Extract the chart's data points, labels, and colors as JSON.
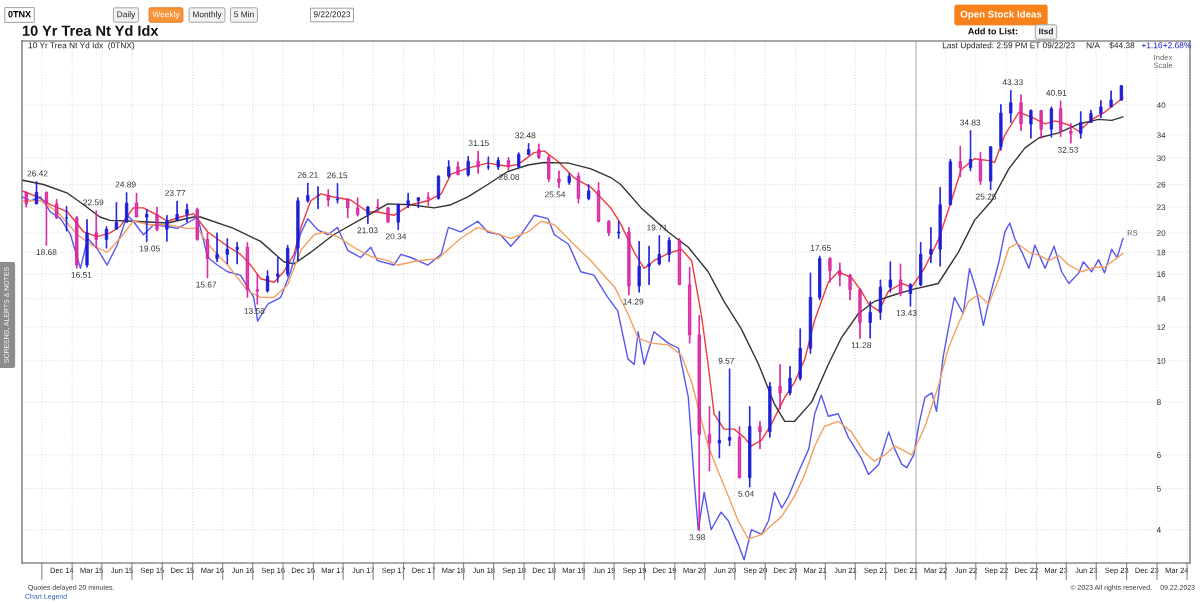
{
  "chart_data": {
    "type": "candlestick",
    "title": "10 Yr Trea Nt Yd Idx",
    "subtitle": "10 Yr Trea Nt Yd Idx  (0TNX)",
    "x": [
      "2014-08-15",
      "2014-09-15",
      "2014-10-15",
      "2014-11-15",
      "2014-12-15",
      "2015-01-15",
      "2015-02-15",
      "2015-03-15",
      "2015-04-15",
      "2015-05-15",
      "2015-06-15",
      "2015-07-15",
      "2015-08-15",
      "2015-09-15",
      "2015-10-15",
      "2015-11-15",
      "2015-12-15",
      "2016-01-15",
      "2016-02-15",
      "2016-03-15",
      "2016-04-15",
      "2016-05-15",
      "2016-06-15",
      "2016-07-15",
      "2016-08-15",
      "2016-09-15",
      "2016-10-15",
      "2016-11-15",
      "2016-12-15",
      "2017-01-15",
      "2017-02-15",
      "2017-03-15",
      "2017-04-15",
      "2017-05-15",
      "2017-06-15",
      "2017-07-15",
      "2017-08-15",
      "2017-09-15",
      "2017-10-15",
      "2017-11-15",
      "2017-12-15",
      "2018-01-15",
      "2018-02-15",
      "2018-03-15",
      "2018-04-15",
      "2018-05-15",
      "2018-06-15",
      "2018-07-15",
      "2018-08-15",
      "2018-09-15",
      "2018-10-15",
      "2018-11-15",
      "2018-12-15",
      "2019-01-15",
      "2019-02-15",
      "2019-03-15",
      "2019-04-15",
      "2019-05-15",
      "2019-06-15",
      "2019-07-15",
      "2019-08-15",
      "2019-09-15",
      "2019-10-15",
      "2019-11-15",
      "2019-12-15",
      "2020-01-15",
      "2020-02-15",
      "2020-03-15",
      "2020-04-15",
      "2020-05-15",
      "2020-06-15",
      "2020-07-15",
      "2020-08-15",
      "2020-09-15",
      "2020-10-15",
      "2020-11-15",
      "2020-12-15",
      "2021-01-15",
      "2021-02-15",
      "2021-03-15",
      "2021-04-15",
      "2021-05-15",
      "2021-06-15",
      "2021-07-15",
      "2021-08-15",
      "2021-09-15",
      "2021-10-15",
      "2021-11-15",
      "2021-12-15",
      "2022-01-15",
      "2022-02-15",
      "2022-03-15",
      "2022-04-15",
      "2022-05-15",
      "2022-06-15",
      "2022-07-15",
      "2022-08-15",
      "2022-09-15",
      "2022-10-15",
      "2022-11-15",
      "2022-12-15",
      "2023-01-15",
      "2023-02-15",
      "2023-03-15",
      "2023-04-15",
      "2023-05-15",
      "2023-06-15",
      "2023-07-15",
      "2023-08-15",
      "2023-09-15"
    ],
    "ohlc": [
      [
        24.9,
        25.0,
        23.0,
        23.4
      ],
      [
        23.4,
        26.42,
        23.4,
        24.9
      ],
      [
        24.9,
        25.0,
        18.68,
        23.4
      ],
      [
        23.4,
        24.0,
        21.6,
        21.7
      ],
      [
        21.7,
        23.1,
        20.2,
        21.7
      ],
      [
        21.7,
        21.9,
        16.51,
        16.8
      ],
      [
        16.8,
        21.5,
        16.6,
        20.0
      ],
      [
        20.0,
        22.59,
        18.4,
        19.3
      ],
      [
        19.3,
        20.7,
        18.4,
        20.4
      ],
      [
        20.4,
        23.6,
        20.4,
        21.2
      ],
      [
        21.2,
        24.89,
        21.2,
        23.5
      ],
      [
        23.5,
        24.8,
        21.8,
        21.8
      ],
      [
        21.8,
        22.7,
        19.05,
        22.1
      ],
      [
        22.1,
        23.0,
        20.2,
        20.4
      ],
      [
        20.4,
        22.0,
        19.1,
        21.4
      ],
      [
        21.4,
        23.77,
        21.4,
        22.1
      ],
      [
        22.1,
        23.4,
        21.2,
        22.7
      ],
      [
        22.7,
        22.9,
        19.2,
        19.3
      ],
      [
        19.3,
        20.0,
        15.67,
        17.4
      ],
      [
        17.4,
        20.0,
        17.1,
        17.8
      ],
      [
        17.8,
        19.4,
        16.9,
        18.3
      ],
      [
        18.3,
        19.0,
        16.9,
        18.5
      ],
      [
        18.5,
        19.0,
        14.1,
        14.7
      ],
      [
        14.7,
        16.0,
        13.58,
        14.6
      ],
      [
        14.6,
        16.3,
        14.5,
        15.8
      ],
      [
        15.8,
        17.5,
        15.3,
        16.0
      ],
      [
        16.0,
        18.7,
        15.8,
        18.4
      ],
      [
        18.4,
        24.2,
        17.2,
        23.8
      ],
      [
        23.8,
        26.21,
        23.6,
        24.5
      ],
      [
        24.5,
        25.7,
        22.8,
        24.5
      ],
      [
        24.5,
        25.3,
        23.1,
        23.9
      ],
      [
        23.9,
        26.15,
        23.5,
        24.0
      ],
      [
        24.0,
        24.1,
        21.7,
        22.9
      ],
      [
        22.9,
        24.2,
        21.9,
        22.1
      ],
      [
        22.1,
        23.1,
        21.03,
        23.0
      ],
      [
        23.0,
        24.0,
        22.4,
        22.9
      ],
      [
        22.9,
        23.0,
        21.2,
        21.2
      ],
      [
        21.2,
        23.4,
        20.34,
        23.3
      ],
      [
        23.3,
        24.8,
        22.9,
        23.8
      ],
      [
        23.8,
        24.2,
        22.9,
        24.2
      ],
      [
        24.2,
        24.9,
        23.2,
        24.1
      ],
      [
        24.1,
        27.3,
        24.0,
        27.2
      ],
      [
        27.2,
        29.6,
        27.0,
        28.6
      ],
      [
        28.6,
        29.4,
        27.4,
        27.4
      ],
      [
        27.4,
        30.3,
        27.2,
        29.5
      ],
      [
        29.5,
        31.15,
        27.6,
        28.6
      ],
      [
        28.6,
        30.2,
        28.2,
        28.6
      ],
      [
        28.6,
        30.1,
        28.2,
        29.6
      ],
      [
        29.6,
        30.1,
        28.08,
        28.6
      ],
      [
        28.6,
        30.9,
        28.5,
        30.6
      ],
      [
        30.6,
        32.48,
        30.5,
        31.4
      ],
      [
        31.4,
        32.4,
        29.9,
        30.1
      ],
      [
        30.1,
        30.4,
        26.4,
        26.8
      ],
      [
        26.8,
        28.0,
        25.54,
        26.3
      ],
      [
        26.3,
        27.6,
        26.0,
        27.2
      ],
      [
        27.2,
        27.7,
        23.5,
        24.1
      ],
      [
        24.1,
        26.0,
        23.9,
        25.1
      ],
      [
        25.1,
        26.3,
        21.2,
        21.3
      ],
      [
        21.3,
        21.4,
        19.7,
        20.0
      ],
      [
        20.0,
        21.3,
        19.4,
        20.1
      ],
      [
        20.1,
        20.6,
        14.29,
        15.0
      ],
      [
        15.0,
        19.1,
        14.5,
        16.7
      ],
      [
        16.7,
        18.6,
        15.1,
        16.9
      ],
      [
        16.9,
        19.71,
        16.8,
        17.8
      ],
      [
        17.8,
        19.5,
        17.1,
        19.2
      ],
      [
        19.2,
        19.4,
        15.1,
        15.1
      ],
      [
        15.1,
        16.6,
        11.0,
        11.5
      ],
      [
        11.5,
        12.8,
        3.98,
        6.7
      ],
      [
        6.7,
        7.8,
        5.5,
        6.4
      ],
      [
        6.4,
        7.6,
        5.9,
        6.5
      ],
      [
        6.5,
        9.57,
        6.3,
        6.6
      ],
      [
        6.6,
        7.0,
        5.3,
        5.3
      ],
      [
        5.3,
        7.8,
        5.04,
        7.0
      ],
      [
        7.0,
        7.2,
        6.2,
        6.8
      ],
      [
        6.8,
        8.9,
        6.6,
        8.7
      ],
      [
        8.7,
        9.8,
        7.7,
        8.4
      ],
      [
        8.4,
        9.7,
        8.3,
        9.1
      ],
      [
        9.1,
        11.9,
        9.0,
        10.7
      ],
      [
        10.7,
        16.1,
        10.4,
        14.1
      ],
      [
        14.1,
        17.65,
        13.9,
        17.4
      ],
      [
        17.4,
        17.5,
        15.3,
        16.3
      ],
      [
        16.3,
        17.0,
        15.0,
        15.9
      ],
      [
        15.9,
        16.0,
        13.9,
        14.7
      ],
      [
        14.7,
        14.8,
        11.28,
        12.3
      ],
      [
        12.3,
        13.8,
        11.3,
        13.0
      ],
      [
        13.0,
        15.5,
        12.5,
        14.9
      ],
      [
        14.9,
        17.1,
        14.5,
        15.5
      ],
      [
        15.5,
        16.9,
        14.2,
        14.4
      ],
      [
        14.4,
        15.2,
        13.43,
        15.1
      ],
      [
        15.1,
        19.0,
        15.0,
        17.8
      ],
      [
        17.8,
        20.6,
        17.0,
        18.3
      ],
      [
        18.3,
        25.6,
        16.7,
        23.3
      ],
      [
        23.3,
        29.8,
        23.3,
        29.4
      ],
      [
        29.4,
        32.0,
        27.1,
        28.5
      ],
      [
        28.5,
        34.83,
        28.0,
        29.8
      ],
      [
        29.8,
        31.0,
        26.0,
        26.5
      ],
      [
        26.5,
        31.9,
        25.25,
        31.9
      ],
      [
        31.9,
        40.1,
        31.3,
        38.3
      ],
      [
        38.3,
        43.33,
        36.4,
        40.5
      ],
      [
        40.5,
        42.3,
        34.8,
        36.1
      ],
      [
        36.1,
        39.0,
        33.4,
        38.8
      ],
      [
        38.8,
        38.9,
        33.4,
        35.1
      ],
      [
        35.1,
        39.6,
        33.6,
        39.2
      ],
      [
        39.2,
        40.91,
        33.7,
        34.7
      ],
      [
        34.7,
        36.2,
        32.53,
        34.3
      ],
      [
        34.3,
        38.6,
        33.4,
        36.4
      ],
      [
        36.4,
        38.9,
        36.4,
        38.2
      ],
      [
        38.2,
        41.0,
        37.3,
        39.6
      ],
      [
        39.6,
        43.2,
        39.6,
        41.1
      ],
      [
        41.1,
        44.5,
        41.0,
        44.38
      ]
    ],
    "colors": [
      "#d9249f",
      "#1f1fd6",
      "#d9249f",
      "#d9249f",
      "#1f1fd6",
      "#d9249f",
      "#1f1fd6",
      "#d9249f",
      "#1f1fd6",
      "#1f1fd6",
      "#1f1fd6",
      "#d9249f",
      "#1f1fd6",
      "#d9249f",
      "#1f1fd6",
      "#1f1fd6",
      "#1f1fd6",
      "#d9249f",
      "#d9249f",
      "#1f1fd6",
      "#1f1fd6",
      "#1f1fd6",
      "#d9249f",
      "#d9249f",
      "#1f1fd6",
      "#1f1fd6",
      "#1f1fd6",
      "#1f1fd6",
      "#1f1fd6",
      "#1f1fd6",
      "#d9249f",
      "#1f1fd6",
      "#d9249f",
      "#d9249f",
      "#1f1fd6",
      "#d9249f",
      "#d9249f",
      "#1f1fd6",
      "#1f1fd6",
      "#1f1fd6",
      "#d9249f",
      "#1f1fd6",
      "#1f1fd6",
      "#d9249f",
      "#1f1fd6",
      "#d9249f",
      "#1f1fd6",
      "#1f1fd6",
      "#d9249f",
      "#1f1fd6",
      "#1f1fd6",
      "#d9249f",
      "#d9249f",
      "#d9249f",
      "#1f1fd6",
      "#d9249f",
      "#1f1fd6",
      "#d9249f",
      "#d9249f",
      "#1f1fd6",
      "#d9249f",
      "#1f1fd6",
      "#1f1fd6",
      "#1f1fd6",
      "#1f1fd6",
      "#d9249f",
      "#d9249f",
      "#d9249f",
      "#d9249f",
      "#1f1fd6",
      "#1f1fd6",
      "#d9249f",
      "#1f1fd6",
      "#d9249f",
      "#1f1fd6",
      "#d9249f",
      "#1f1fd6",
      "#1f1fd6",
      "#1f1fd6",
      "#1f1fd6",
      "#d9249f",
      "#d9249f",
      "#d9249f",
      "#d9249f",
      "#1f1fd6",
      "#1f1fd6",
      "#1f1fd6",
      "#d9249f",
      "#1f1fd6",
      "#1f1fd6",
      "#1f1fd6",
      "#1f1fd6",
      "#1f1fd6",
      "#d9249f",
      "#1f1fd6",
      "#d9249f",
      "#1f1fd6",
      "#1f1fd6",
      "#1f1fd6",
      "#d9249f",
      "#1f1fd6",
      "#d9249f",
      "#1f1fd6",
      "#d9249f",
      "#d9249f",
      "#1f1fd6",
      "#1f1fd6",
      "#1f1fd6",
      "#1f1fd6",
      "#1f1fd6"
    ],
    "series": [
      {
        "type": "line",
        "color": "#f03a3a",
        "x": [
          "2014-08-03",
          "2014-09-18",
          "2014-10-27",
          "2014-12-18",
          "2015-02-05",
          "2015-03-17",
          "2015-04-26",
          "2015-05-26",
          "2015-07-05",
          "2015-08-05",
          "2015-09-17",
          "2015-10-17",
          "2015-11-25",
          "2016-01-04",
          "2016-02-16",
          "2016-04-16",
          "2016-05-25",
          "2016-06-25",
          "2016-07-25",
          "2016-09-04",
          "2016-10-03",
          "2016-11-03",
          "2016-11-24",
          "2016-12-24",
          "2017-01-24",
          "2017-03-03",
          "2017-04-24",
          "2017-06-15",
          "2017-07-14",
          "2017-09-02",
          "2017-10-23",
          "2017-12-14",
          "2018-01-23",
          "2018-02-22",
          "2018-04-14",
          "2018-06-13",
          "2018-08-13",
          "2018-09-13",
          "2018-11-01",
          "2018-12-01",
          "2019-01-13",
          "2019-03-01",
          "2019-04-22",
          "2019-06-21",
          "2019-07-21",
          "2019-08-31",
          "2019-09-30",
          "2019-10-30",
          "2019-12-12",
          "2020-01-21",
          "2020-02-21",
          "2020-03-21",
          "2020-04-11",
          "2020-04-29",
          "2020-05-29",
          "2020-06-29",
          "2020-07-29",
          "2020-08-20",
          "2020-09-20",
          "2020-10-20",
          "2020-11-29",
          "2020-12-29",
          "2021-01-29",
          "2021-02-27",
          "2021-04-10",
          "2021-05-10",
          "2021-06-19",
          "2021-07-19",
          "2021-08-10",
          "2021-09-10",
          "2021-10-10",
          "2021-11-19",
          "2021-12-19",
          "2022-01-28",
          "2022-03-09",
          "2022-04-18",
          "2022-05-18",
          "2022-06-27",
          "2022-08-09",
          "2022-08-27",
          "2022-09-27",
          "2022-11-09",
          "2022-12-18",
          "2023-01-27",
          "2023-02-27",
          "2023-04-09",
          "2023-05-09",
          "2023-06-18",
          "2023-07-27",
          "2023-09-20"
        ],
        "values": [
          25.1,
          24.3,
          23.3,
          22.4,
          20.1,
          19.6,
          20.0,
          20.7,
          22.9,
          22.9,
          22.0,
          21.3,
          21.8,
          22.2,
          20.1,
          18.6,
          17.8,
          16.8,
          15.6,
          15.3,
          16.2,
          17.8,
          20.6,
          23.8,
          24.7,
          24.3,
          23.9,
          22.4,
          22.4,
          22.0,
          23.3,
          23.8,
          24.7,
          27.5,
          28.4,
          29.2,
          28.7,
          29.0,
          30.9,
          31.2,
          29.4,
          27.0,
          25.6,
          22.9,
          21.0,
          18.0,
          16.5,
          17.2,
          17.9,
          18.3,
          17.2,
          12.9,
          9.8,
          7.5,
          6.9,
          6.9,
          6.6,
          6.3,
          6.5,
          7.1,
          8.2,
          8.9,
          10.1,
          12.4,
          15.3,
          16.2,
          15.7,
          14.6,
          13.6,
          13.1,
          14.6,
          15.2,
          14.9,
          16.6,
          19.2,
          23.8,
          28.2,
          29.9,
          29.6,
          29.3,
          34.0,
          38.5,
          37.4,
          36.1,
          36.7,
          35.9,
          34.7,
          37.0,
          38.5,
          41.6
        ]
      },
      {
        "type": "line",
        "color": "#333333",
        "x": [
          "2014-08-04",
          "2014-10-06",
          "2014-12-18",
          "2015-02-05",
          "2015-03-26",
          "2015-04-26",
          "2015-07-05",
          "2015-10-17",
          "2016-01-04",
          "2016-01-25",
          "2016-05-04",
          "2016-07-25",
          "2016-10-03",
          "2016-11-03",
          "2016-12-24",
          "2017-03-03",
          "2017-06-15",
          "2017-08-14",
          "2017-10-23",
          "2018-01-02",
          "2018-02-22",
          "2018-04-14",
          "2018-06-13",
          "2018-08-13",
          "2018-10-13",
          "2018-12-01",
          "2019-02-13",
          "2019-04-22",
          "2019-06-21",
          "2019-07-21",
          "2019-09-21",
          "2019-12-12",
          "2020-02-11",
          "2020-04-11",
          "2020-05-29",
          "2020-07-20",
          "2020-09-11",
          "2020-10-29",
          "2020-11-29",
          "2020-12-29",
          "2021-02-19",
          "2021-04-10",
          "2021-05-19",
          "2021-07-10",
          "2021-08-28",
          "2021-10-28",
          "2021-12-19",
          "2022-03-09",
          "2022-05-09",
          "2022-06-27",
          "2022-08-18",
          "2022-10-09",
          "2022-11-27",
          "2023-01-09",
          "2023-03-09",
          "2023-05-09",
          "2023-07-08",
          "2023-08-17",
          "2023-09-20"
        ],
        "values": [
          26.6,
          26.0,
          24.8,
          23.3,
          21.8,
          21.4,
          21.3,
          21.1,
          21.8,
          21.8,
          20.5,
          19.1,
          17.1,
          16.9,
          18.0,
          19.8,
          22.0,
          23.4,
          23.3,
          22.9,
          23.3,
          24.3,
          26.0,
          27.9,
          28.9,
          29.3,
          29.2,
          28.3,
          27.0,
          26.0,
          22.9,
          20.1,
          18.5,
          16.2,
          13.8,
          11.9,
          9.8,
          7.9,
          7.2,
          7.2,
          8.0,
          9.8,
          11.3,
          12.9,
          13.8,
          14.3,
          14.7,
          15.2,
          18.0,
          21.4,
          23.8,
          28.3,
          31.7,
          33.5,
          34.4,
          36.1,
          37.0,
          36.8,
          37.5
        ]
      },
      {
        "type": "line",
        "name": "RS",
        "color": "#5656f0",
        "x": [
          "2014-08-03",
          "2014-08-27",
          "2014-09-27",
          "2014-10-27",
          "2014-11-27",
          "2014-12-27",
          "2015-01-26",
          "2015-02-17",
          "2015-03-17",
          "2015-04-17",
          "2015-05-17",
          "2015-06-17",
          "2015-07-05",
          "2015-08-05",
          "2015-09-05",
          "2015-10-17",
          "2015-11-16",
          "2015-12-16",
          "2016-01-16",
          "2016-02-16",
          "2016-03-16",
          "2016-04-16",
          "2016-05-25",
          "2016-07-04",
          "2016-07-16",
          "2016-08-16",
          "2016-09-24",
          "2016-10-24",
          "2016-11-24",
          "2016-12-15",
          "2017-01-15",
          "2017-02-14",
          "2017-03-15",
          "2017-04-15",
          "2017-05-24",
          "2017-06-24",
          "2017-07-14",
          "2017-09-02",
          "2017-09-23",
          "2017-10-23",
          "2017-12-14",
          "2018-01-23",
          "2018-02-14",
          "2018-03-23",
          "2018-05-14",
          "2018-06-13",
          "2018-07-22",
          "2018-08-22",
          "2018-09-22",
          "2018-11-01",
          "2018-12-13",
          "2019-01-01",
          "2019-02-13",
          "2019-03-22",
          "2019-05-01",
          "2019-05-21",
          "2019-06-12",
          "2019-07-12",
          "2019-08-12",
          "2019-08-31",
          "2019-09-12",
          "2019-09-30",
          "2019-10-30",
          "2019-12-12",
          "2020-01-12",
          "2020-02-11",
          "2020-02-29",
          "2020-03-12",
          "2020-03-30",
          "2020-04-20",
          "2020-05-20",
          "2020-06-11",
          "2020-07-11",
          "2020-07-29",
          "2020-08-20",
          "2020-09-20",
          "2020-10-11",
          "2020-10-29",
          "2020-11-20",
          "2020-12-11",
          "2021-01-11",
          "2021-02-10",
          "2021-02-28",
          "2021-03-20",
          "2021-04-10",
          "2021-05-10",
          "2021-06-10",
          "2021-07-19",
          "2021-08-10",
          "2021-09-10",
          "2021-10-10",
          "2021-10-28",
          "2021-11-19",
          "2021-12-04",
          "2021-12-25",
          "2022-01-10",
          "2022-01-28",
          "2022-02-18",
          "2022-03-04",
          "2022-03-24",
          "2022-04-09",
          "2022-04-27",
          "2022-05-24",
          "2022-06-12",
          "2022-07-03",
          "2022-07-24",
          "2022-08-12",
          "2022-09-09",
          "2022-09-27",
          "2022-10-12",
          "2022-10-27",
          "2022-11-18",
          "2022-12-09",
          "2022-12-27",
          "2023-01-27",
          "2023-02-23",
          "2023-03-18",
          "2023-04-09",
          "2023-05-09",
          "2023-05-23",
          "2023-06-17",
          "2023-07-08",
          "2023-07-26",
          "2023-08-17",
          "2023-09-02",
          "2023-09-20"
        ],
        "values": [
          24.3,
          23.8,
          24.3,
          22.4,
          21.6,
          19.8,
          16.5,
          19.4,
          18.4,
          16.8,
          18.7,
          22.0,
          21.3,
          19.8,
          20.9,
          20.7,
          20.5,
          21.1,
          21.8,
          17.5,
          16.8,
          16.2,
          15.9,
          14.1,
          12.4,
          13.6,
          14.1,
          16.2,
          20.0,
          21.6,
          20.3,
          19.8,
          20.6,
          18.2,
          17.5,
          18.5,
          17.2,
          16.8,
          17.8,
          17.5,
          16.8,
          17.8,
          20.6,
          20.1,
          21.3,
          20.1,
          19.8,
          18.6,
          19.8,
          22.0,
          21.6,
          19.8,
          18.8,
          16.2,
          15.9,
          15.0,
          14.1,
          13.1,
          10.1,
          9.8,
          11.7,
          9.8,
          11.7,
          11.0,
          10.7,
          8.2,
          5.2,
          4.0,
          4.9,
          4.0,
          4.4,
          4.2,
          3.7,
          3.4,
          4.0,
          3.9,
          4.2,
          4.9,
          4.5,
          4.8,
          5.5,
          6.2,
          7.5,
          8.3,
          7.4,
          7.5,
          6.6,
          5.9,
          5.4,
          5.7,
          6.8,
          6.2,
          5.7,
          5.6,
          6.0,
          7.1,
          8.2,
          8.4,
          7.6,
          10.2,
          11.9,
          14.1,
          12.9,
          16.5,
          14.6,
          12.1,
          14.1,
          17.1,
          20.1,
          21.1,
          19.4,
          18.0,
          16.5,
          18.7,
          16.5,
          18.6,
          16.2,
          15.2,
          16.1,
          17.1,
          16.2,
          17.3,
          16.1,
          18.3,
          17.5,
          19.4
        ]
      },
      {
        "type": "line",
        "color": "#f4a060",
        "x": [
          "2014-08-03",
          "2014-09-27",
          "2014-11-18",
          "2015-01-17",
          "2015-02-25",
          "2015-04-17",
          "2015-05-26",
          "2015-07-05",
          "2015-08-26",
          "2015-10-17",
          "2015-12-16",
          "2016-01-16",
          "2016-02-16",
          "2016-04-16",
          "2016-06-16",
          "2016-07-25",
          "2016-09-04",
          "2016-10-15",
          "2016-11-24",
          "2016-12-24",
          "2017-01-03",
          "2017-02-03",
          "2017-03-15",
          "2017-05-03",
          "2017-06-24",
          "2017-08-14",
          "2017-09-14",
          "2017-11-14",
          "2018-01-14",
          "2018-02-14",
          "2018-03-23",
          "2018-05-14",
          "2018-07-02",
          "2018-08-22",
          "2018-10-13",
          "2018-11-22",
          "2019-01-01",
          "2019-03-01",
          "2019-04-22",
          "2019-05-21",
          "2019-07-03",
          "2019-08-12",
          "2019-09-12",
          "2019-10-21",
          "2019-12-12",
          "2020-01-21",
          "2020-02-21",
          "2020-04-11",
          "2020-05-11",
          "2020-06-11",
          "2020-07-11",
          "2020-08-11",
          "2020-09-20",
          "2020-10-20",
          "2020-11-20",
          "2020-12-29",
          "2021-01-29",
          "2021-02-28",
          "2021-03-29",
          "2021-05-10",
          "2021-06-19",
          "2021-07-28",
          "2021-08-28",
          "2021-09-28",
          "2021-10-28",
          "2021-12-19",
          "2022-01-28",
          "2022-03-09",
          "2022-04-09",
          "2022-05-09",
          "2022-06-09",
          "2022-07-09",
          "2022-08-09",
          "2022-09-09",
          "2022-10-09",
          "2022-11-03",
          "2022-12-09",
          "2023-01-09",
          "2023-02-08",
          "2023-03-09",
          "2023-04-09",
          "2023-05-17",
          "2023-06-26",
          "2023-07-26",
          "2023-08-26",
          "2023-09-20"
        ],
        "values": [
          23.8,
          23.8,
          22.4,
          19.8,
          18.8,
          18.0,
          19.4,
          21.3,
          20.9,
          20.9,
          20.5,
          20.5,
          18.8,
          16.8,
          14.6,
          14.1,
          14.1,
          15.1,
          18.2,
          19.4,
          19.8,
          20.1,
          19.6,
          18.5,
          17.6,
          17.2,
          16.8,
          17.2,
          17.4,
          18.3,
          19.4,
          20.6,
          20.0,
          19.4,
          20.1,
          21.3,
          20.9,
          18.8,
          17.2,
          16.2,
          14.9,
          12.9,
          11.3,
          11.0,
          10.9,
          10.3,
          8.9,
          6.3,
          5.5,
          4.8,
          4.2,
          3.8,
          3.9,
          4.1,
          4.3,
          4.8,
          5.4,
          6.3,
          7.0,
          7.2,
          6.8,
          6.1,
          5.8,
          6.0,
          6.3,
          6.0,
          7.0,
          8.7,
          10.7,
          12.2,
          13.8,
          14.3,
          13.6,
          15.6,
          18.4,
          18.9,
          18.0,
          17.7,
          17.2,
          17.7,
          16.8,
          16.2,
          16.6,
          16.6,
          17.3,
          17.9
        ]
      }
    ],
    "xlim": [
      "2014-08-02",
      "2024-04-10"
    ],
    "ylim": [
      3.34,
      56.6
    ],
    "log": true,
    "yticks": [
      4,
      5,
      6,
      8,
      10,
      12,
      14,
      16,
      18,
      20,
      23,
      26,
      30,
      34,
      40
    ],
    "xticks": [
      {
        "value": "2014-10-01",
        "label": null
      },
      {
        "value": "2014-12-01",
        "label": "Dec 14"
      },
      {
        "value": "2015-01-01",
        "label": null
      },
      {
        "value": "2015-03-01",
        "label": "Mar 15"
      },
      {
        "value": "2015-04-01",
        "label": null
      },
      {
        "value": "2015-06-01",
        "label": "Jun 15"
      },
      {
        "value": "2015-07-01",
        "label": null
      },
      {
        "value": "2015-09-01",
        "label": "Sep 15"
      },
      {
        "value": "2015-10-01",
        "label": null
      },
      {
        "value": "2015-12-01",
        "label": "Dec 15"
      },
      {
        "value": "2016-01-01",
        "label": null
      },
      {
        "value": "2016-03-01",
        "label": "Mar 16"
      },
      {
        "value": "2016-04-01",
        "label": null
      },
      {
        "value": "2016-06-01",
        "label": "Jun 16"
      },
      {
        "value": "2016-07-01",
        "label": null
      },
      {
        "value": "2016-09-01",
        "label": "Sep 16"
      },
      {
        "value": "2016-10-01",
        "label": null
      },
      {
        "value": "2016-12-01",
        "label": "Dec 16"
      },
      {
        "value": "2017-01-01",
        "label": null
      },
      {
        "value": "2017-03-01",
        "label": "Mar 17"
      },
      {
        "value": "2017-04-01",
        "label": null
      },
      {
        "value": "2017-06-01",
        "label": "Jun 17"
      },
      {
        "value": "2017-07-01",
        "label": null
      },
      {
        "value": "2017-09-01",
        "label": "Sep 17"
      },
      {
        "value": "2017-10-01",
        "label": null
      },
      {
        "value": "2017-12-01",
        "label": "Dec 17"
      },
      {
        "value": "2018-01-01",
        "label": null
      },
      {
        "value": "2018-03-01",
        "label": "Mar 18"
      },
      {
        "value": "2018-04-01",
        "label": null
      },
      {
        "value": "2018-06-01",
        "label": "Jun 18"
      },
      {
        "value": "2018-07-01",
        "label": null
      },
      {
        "value": "2018-09-01",
        "label": "Sep 18"
      },
      {
        "value": "2018-10-01",
        "label": null
      },
      {
        "value": "2018-12-01",
        "label": "Dec 18"
      },
      {
        "value": "2019-01-01",
        "label": null
      },
      {
        "value": "2019-03-01",
        "label": "Mar 19"
      },
      {
        "value": "2019-04-01",
        "label": null
      },
      {
        "value": "2019-06-01",
        "label": "Jun 19"
      },
      {
        "value": "2019-07-01",
        "label": null
      },
      {
        "value": "2019-09-01",
        "label": "Sep 19"
      },
      {
        "value": "2019-10-01",
        "label": null
      },
      {
        "value": "2019-12-01",
        "label": "Dec 19"
      },
      {
        "value": "2020-01-01",
        "label": null
      },
      {
        "value": "2020-03-01",
        "label": "Mar 20"
      },
      {
        "value": "2020-04-01",
        "label": null
      },
      {
        "value": "2020-06-01",
        "label": "Jun 20"
      },
      {
        "value": "2020-07-01",
        "label": null
      },
      {
        "value": "2020-09-01",
        "label": "Sep 20"
      },
      {
        "value": "2020-10-01",
        "label": null
      },
      {
        "value": "2020-12-01",
        "label": "Dec 20"
      },
      {
        "value": "2021-01-01",
        "label": null
      },
      {
        "value": "2021-03-01",
        "label": "Mar 21"
      },
      {
        "value": "2021-04-01",
        "label": null
      },
      {
        "value": "2021-06-01",
        "label": "Jun 21"
      },
      {
        "value": "2021-07-01",
        "label": null
      },
      {
        "value": "2021-09-01",
        "label": "Sep 21"
      },
      {
        "value": "2021-10-01",
        "label": null
      },
      {
        "value": "2021-12-01",
        "label": "Dec 21"
      },
      {
        "value": "2022-01-01",
        "label": null
      },
      {
        "value": "2022-03-01",
        "label": "Mar 22"
      },
      {
        "value": "2022-04-01",
        "label": null
      },
      {
        "value": "2022-06-01",
        "label": "Jun 22"
      },
      {
        "value": "2022-07-01",
        "label": null
      },
      {
        "value": "2022-09-01",
        "label": "Sep 22"
      },
      {
        "value": "2022-10-01",
        "label": null
      },
      {
        "value": "2022-12-01",
        "label": "Dec 22"
      },
      {
        "value": "2023-01-01",
        "label": null
      },
      {
        "value": "2023-03-01",
        "label": "Mar 23"
      },
      {
        "value": "2023-04-01",
        "label": null
      },
      {
        "value": "2023-06-01",
        "label": "Jun 23"
      },
      {
        "value": "2023-07-01",
        "label": null
      },
      {
        "value": "2023-09-01",
        "label": "Sep 23"
      },
      {
        "value": "2023-10-01",
        "label": null
      },
      {
        "value": "2023-12-01",
        "label": "Dec 23"
      },
      {
        "value": "2024-01-01",
        "label": null
      },
      {
        "value": "2024-03-01",
        "label": "Mar 24"
      },
      {
        "value": "2024-04-01",
        "label": null
      }
    ],
    "grid": true,
    "ref_lines": [
      {
        "axis": "x",
        "value": "2022-01-01",
        "color": "#c4c4c4"
      }
    ],
    "annotations": [
      {
        "text": "26.42",
        "x": "2014-09-18",
        "y": 26.42
      },
      {
        "text": "18.68",
        "x": "2014-10-15",
        "y": 18.68
      },
      {
        "text": "16.51",
        "x": "2015-01-29",
        "y": 16.51
      },
      {
        "text": "22.59",
        "x": "2015-03-06",
        "y": 22.59
      },
      {
        "text": "24.89",
        "x": "2015-06-12",
        "y": 24.89
      },
      {
        "text": "19.05",
        "x": "2015-08-24",
        "y": 19.05
      },
      {
        "text": "23.77",
        "x": "2015-11-09",
        "y": 23.77
      },
      {
        "text": "15.67",
        "x": "2016-02-11",
        "y": 15.67
      },
      {
        "text": "13.58",
        "x": "2016-07-06",
        "y": 13.58
      },
      {
        "text": "26.21",
        "x": "2016-12-15",
        "y": 26.21
      },
      {
        "text": "26.15",
        "x": "2017-03-14",
        "y": 26.15
      },
      {
        "text": "21.03",
        "x": "2017-06-14",
        "y": 21.03
      },
      {
        "text": "20.34",
        "x": "2017-09-08",
        "y": 20.34
      },
      {
        "text": "31.15",
        "x": "2018-05-17",
        "y": 31.15
      },
      {
        "text": "28.08",
        "x": "2018-08-17",
        "y": 28.08
      },
      {
        "text": "32.48",
        "x": "2018-10-05",
        "y": 32.48
      },
      {
        "text": "25.54",
        "x": "2019-01-03",
        "y": 25.54
      },
      {
        "text": "14.29",
        "x": "2019-08-28",
        "y": 14.29
      },
      {
        "text": "19.71",
        "x": "2019-11-08",
        "y": 19.71
      },
      {
        "text": "3.98",
        "x": "2020-03-09",
        "y": 3.98
      },
      {
        "text": "9.57",
        "x": "2020-06-05",
        "y": 9.57
      },
      {
        "text": "5.04",
        "x": "2020-08-04",
        "y": 5.04
      },
      {
        "text": "17.65",
        "x": "2021-03-18",
        "y": 17.65
      },
      {
        "text": "11.28",
        "x": "2021-07-19",
        "y": 11.28
      },
      {
        "text": "13.43",
        "x": "2021-12-03",
        "y": 13.43
      },
      {
        "text": "34.83",
        "x": "2022-06-14",
        "y": 34.83
      },
      {
        "text": "25.25",
        "x": "2022-08-01",
        "y": 25.25
      },
      {
        "text": "43.33",
        "x": "2022-10-21",
        "y": 43.33
      },
      {
        "text": "40.91",
        "x": "2023-03-02",
        "y": 40.91
      },
      {
        "text": "32.53",
        "x": "2023-04-06",
        "y": 32.53
      },
      "0TNX",
      "Daily",
      "Weekly",
      "Monthly",
      "5 Min",
      "9/22/2023",
      "Open Stock Ideas",
      "Add to List:",
      "Itsd",
      "Last Updated: 2:59 PM ET 09/22/23",
      "N/A",
      "$44.38",
      "+1.16",
      "+2.68%",
      "Index\nScale",
      "SCREENS, ALERTS & NOTES",
      "Quotes delayed 20 minutes.",
      "Chart Legend",
      "© 2023 All rights reserved.",
      "09.22.2023"
    ]
  }
}
